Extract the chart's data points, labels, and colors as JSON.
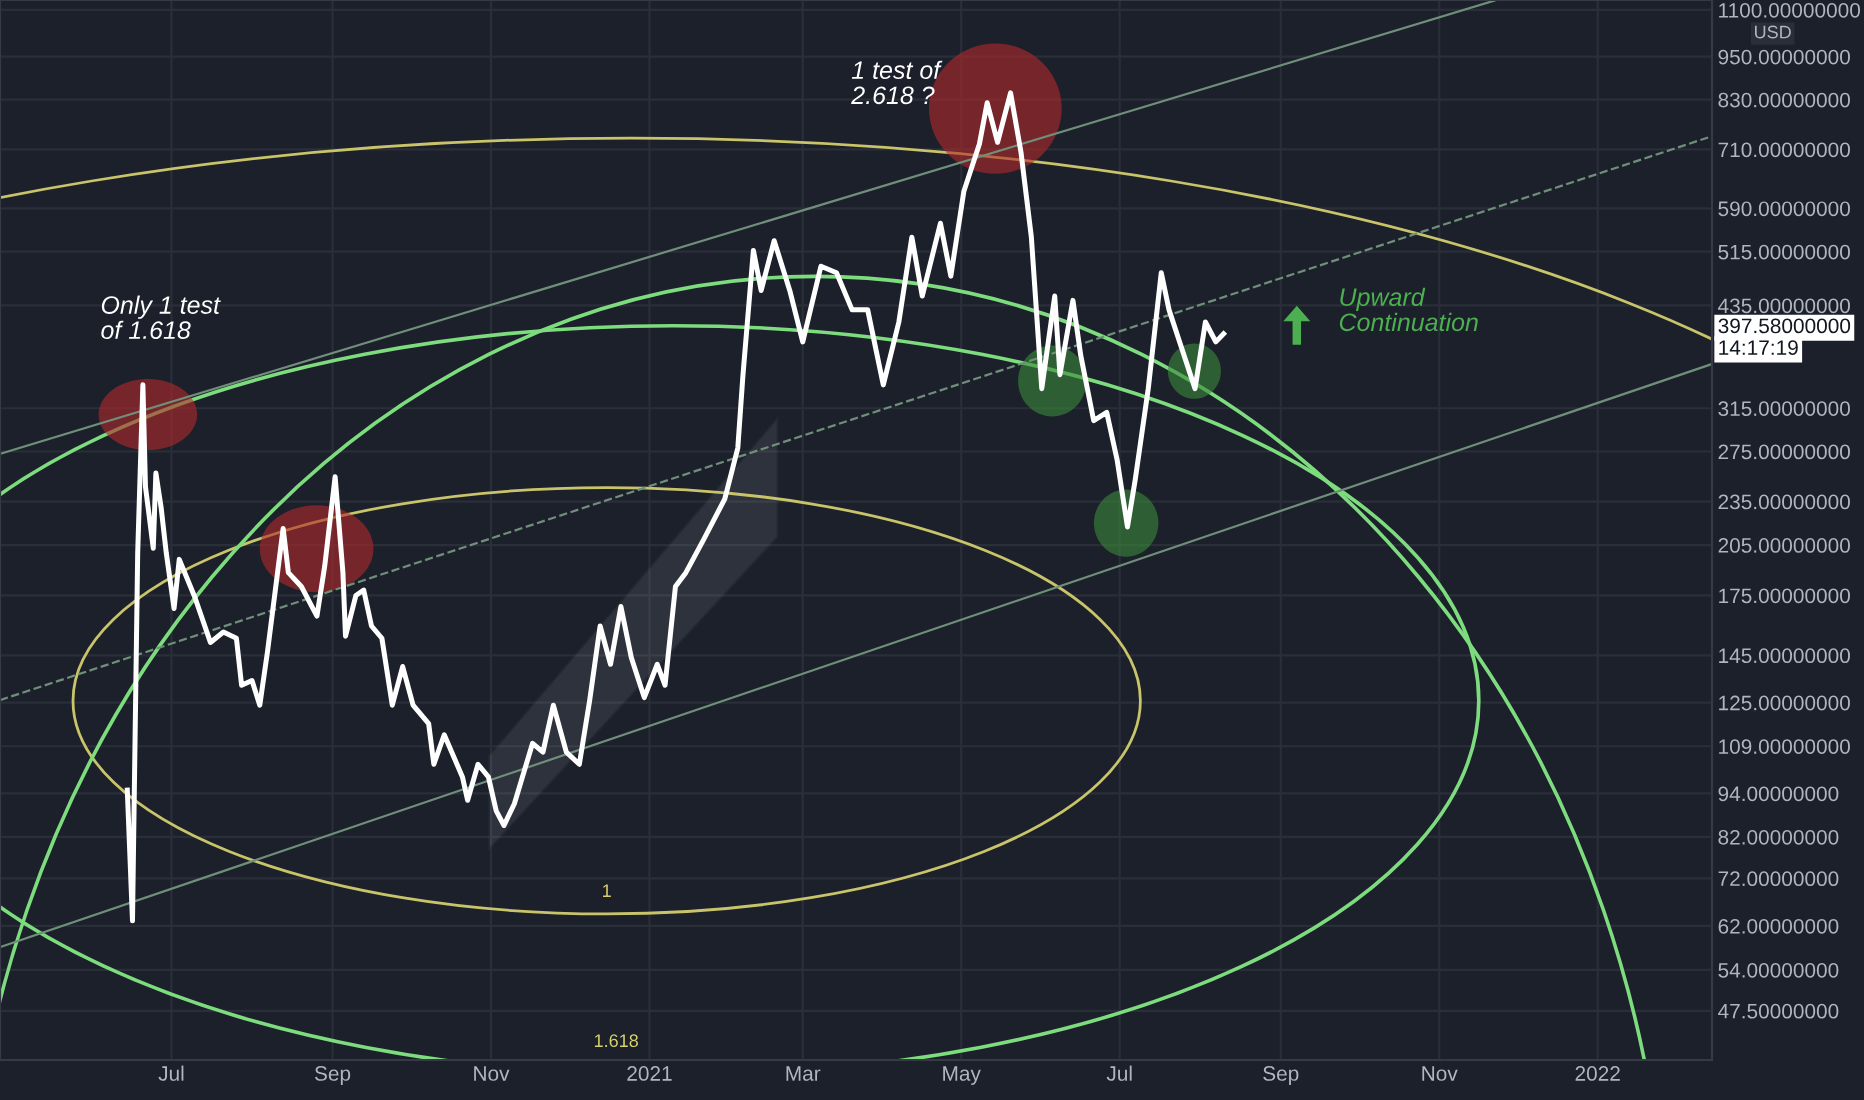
{
  "chart_data": {
    "type": "line",
    "x": [
      "2020-06-14",
      "2020-06-16",
      "2020-06-18",
      "2020-06-20",
      "2020-06-21",
      "2020-06-24",
      "2020-06-25",
      "2020-06-27",
      "2020-06-29",
      "2020-07-02",
      "2020-07-04",
      "2020-07-10",
      "2020-07-16",
      "2020-07-21",
      "2020-07-26",
      "2020-07-28",
      "2020-08-01",
      "2020-08-04",
      "2020-08-07",
      "2020-08-13",
      "2020-08-15",
      "2020-08-20",
      "2020-08-26",
      "2020-08-29",
      "2020-09-02",
      "2020-09-05",
      "2020-09-06",
      "2020-09-10",
      "2020-09-13",
      "2020-09-16",
      "2020-09-20",
      "2020-09-24",
      "2020-09-28",
      "2020-10-02",
      "2020-10-08",
      "2020-10-10",
      "2020-10-14",
      "2020-10-21",
      "2020-10-23",
      "2020-10-27",
      "2020-10-31",
      "2020-11-03",
      "2020-11-06",
      "2020-11-10",
      "2020-11-17",
      "2020-11-21",
      "2020-11-25",
      "2020-11-30",
      "2020-12-05",
      "2020-12-09",
      "2020-12-13",
      "2020-12-17",
      "2020-12-21",
      "2020-12-25",
      "2020-12-30",
      "2021-01-04",
      "2021-01-07",
      "2021-01-11",
      "2021-01-15",
      "2021-01-22",
      "2021-01-30",
      "2021-02-04",
      "2021-02-06",
      "2021-02-10",
      "2021-02-13",
      "2021-02-18",
      "2021-02-24",
      "2021-03-01",
      "2021-03-08",
      "2021-03-14",
      "2021-03-20",
      "2021-03-26",
      "2021-04-01",
      "2021-04-07",
      "2021-04-12",
      "2021-04-16",
      "2021-04-23",
      "2021-04-27",
      "2021-05-02",
      "2021-05-08",
      "2021-05-11",
      "2021-05-15",
      "2021-05-20",
      "2021-05-24",
      "2021-05-28",
      "2021-06-01",
      "2021-06-06",
      "2021-06-08",
      "2021-06-13",
      "2021-06-16",
      "2021-06-21",
      "2021-06-26",
      "2021-06-30",
      "2021-07-04",
      "2021-07-07",
      "2021-07-12",
      "2021-07-17",
      "2021-07-20",
      "2021-07-25",
      "2021-07-30",
      "2021-08-03",
      "2021-08-07",
      "2021-08-10"
    ],
    "series": [
      {
        "type": "line",
        "x": [
          "2020-04-26",
          "2021-11-23"
        ],
        "values": [
          273,
          1135
        ],
        "color": "#6f8f7a"
      },
      {
        "type": "line",
        "x": [
          "2020-04-26",
          "2022-02-14"
        ],
        "values": [
          58,
          362
        ],
        "color": "#6f8f7a"
      },
      {
        "type": "line",
        "x": [
          "2020-04-26",
          "2022-02-14"
        ],
        "values": [
          126,
          740
        ],
        "color": "#6f8f7a",
        "line_style": "dashed"
      },
      {
        "color": "#ffffff",
        "values": [
          95,
          63,
          200,
          339,
          246,
          203,
          257,
          231,
          200,
          168,
          196,
          174,
          151,
          156,
          153,
          132,
          134,
          124,
          147,
          216,
          188,
          180,
          164,
          192,
          254,
          188,
          154,
          175,
          178,
          159,
          153,
          124,
          140,
          124,
          117,
          103,
          113,
          99,
          92,
          103,
          99,
          89,
          85,
          91,
          110,
          107,
          124,
          107,
          103,
          126,
          159,
          141,
          169,
          144,
          127,
          141,
          132,
          180,
          188,
          209,
          237,
          278,
          350,
          517,
          456,
          533,
          456,
          388,
          492,
          482,
          429,
          429,
          339,
          413,
          539,
          448,
          563,
          477,
          622,
          722,
          822,
          726,
          848,
          704,
          539,
          335,
          448,
          350,
          442,
          372,
          303,
          311,
          268,
          217,
          252,
          335,
          482,
          429,
          379,
          335,
          413,
          388,
          398
        ]
      }
    ],
    "log": "y",
    "ylim": [
      40.7,
      1135
    ],
    "yticks": [
      {
        "value": 47.5,
        "label": "47.50000000"
      },
      {
        "value": 54,
        "label": "54.00000000"
      },
      {
        "value": 62,
        "label": "62.00000000"
      },
      {
        "value": 72,
        "label": "72.00000000"
      },
      {
        "value": 82,
        "label": "82.00000000"
      },
      {
        "value": 94,
        "label": "94.00000000"
      },
      {
        "value": 109,
        "label": "109.00000000"
      },
      {
        "value": 125,
        "label": "125.00000000"
      },
      {
        "value": 145,
        "label": "145.00000000"
      },
      {
        "value": 175,
        "label": "175.00000000"
      },
      {
        "value": 205,
        "label": "205.00000000"
      },
      {
        "value": 235,
        "label": "235.00000000"
      },
      {
        "value": 275,
        "label": "275.00000000"
      },
      {
        "value": 315,
        "label": "315.00000000"
      },
      {
        "value": 435,
        "label": "435.00000000"
      },
      {
        "value": 515,
        "label": "515.00000000"
      },
      {
        "value": 590,
        "label": "590.00000000"
      },
      {
        "value": 710,
        "label": "710.00000000"
      },
      {
        "value": 830,
        "label": "830.00000000"
      },
      {
        "value": 950,
        "label": "950.00000000"
      },
      {
        "value": 1100,
        "label": "1100.00000000"
      }
    ],
    "xlim": [
      "2020-04-26",
      "2022-02-14"
    ],
    "xticks": [
      {
        "value": "2020-07-01",
        "label": "Jul"
      },
      {
        "value": "2020-09-01",
        "label": "Sep"
      },
      {
        "value": "2020-11-01",
        "label": "Nov"
      },
      {
        "value": "2021-01-01",
        "label": "2021"
      },
      {
        "value": "2021-03-01",
        "label": "Mar"
      },
      {
        "value": "2021-05-01",
        "label": "May"
      },
      {
        "value": "2021-07-01",
        "label": "Jul"
      },
      {
        "value": "2021-09-01",
        "label": "Sep"
      },
      {
        "value": "2021-11-01",
        "label": "Nov"
      },
      {
        "value": "2022-01-01",
        "label": "2022"
      }
    ],
    "grid": true,
    "annotations": [
      "Only 1 test\nof 1.618",
      "1 test of\n2.618 ?",
      "Upward\nContinuation",
      "1",
      "1.618",
      "USD",
      "397.58000000",
      "14:17:19"
    ]
  }
}
